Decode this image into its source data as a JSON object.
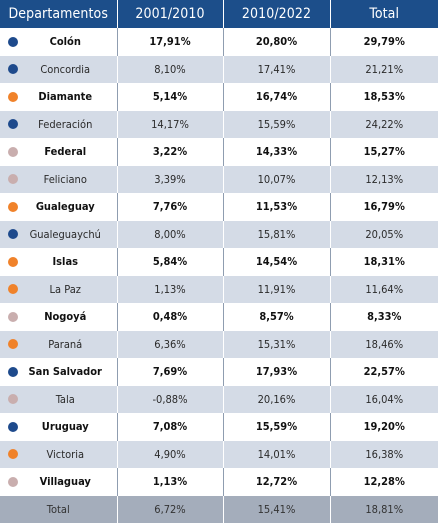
{
  "headers": [
    "Departamentos",
    "2001/2010",
    "2010/2022",
    "Total"
  ],
  "colors": {
    "blue": "#1e4a8c",
    "orange": "#f0822a",
    "pink": "#c9aeae",
    "header_bg": "#1c4e8a"
  },
  "rows": [
    {
      "name": "Colón",
      "dot": "blue",
      "bold": true,
      "v1": "17,91%",
      "v2": "20,80%",
      "v3": "29,79%"
    },
    {
      "name": "Concordia",
      "dot": "blue",
      "bold": false,
      "v1": "8,10%",
      "v2": "17,41%",
      "v3": "21,21%"
    },
    {
      "name": "Diamante",
      "dot": "orange",
      "bold": true,
      "v1": "5,14%",
      "v2": "16,74%",
      "v3": "18,53%"
    },
    {
      "name": "Federación",
      "dot": "blue",
      "bold": false,
      "v1": "14,17%",
      "v2": "15,59%",
      "v3": "24,22%"
    },
    {
      "name": "Federal",
      "dot": "pink",
      "bold": true,
      "v1": "3,22%",
      "v2": "14,33%",
      "v3": "15,27%"
    },
    {
      "name": "Feliciano",
      "dot": "pink",
      "bold": false,
      "v1": "3,39%",
      "v2": "10,07%",
      "v3": "12,13%"
    },
    {
      "name": "Gualeguay",
      "dot": "orange",
      "bold": true,
      "v1": "7,76%",
      "v2": "11,53%",
      "v3": "16,79%"
    },
    {
      "name": "Gualeguaychú",
      "dot": "blue",
      "bold": false,
      "v1": "8,00%",
      "v2": "15,81%",
      "v3": "20,05%"
    },
    {
      "name": "Islas",
      "dot": "orange",
      "bold": true,
      "v1": "5,84%",
      "v2": "14,54%",
      "v3": "18,31%"
    },
    {
      "name": "La Paz",
      "dot": "orange",
      "bold": false,
      "v1": "1,13%",
      "v2": "11,91%",
      "v3": "11,64%"
    },
    {
      "name": "Nogoyá",
      "dot": "pink",
      "bold": true,
      "v1": "0,48%",
      "v2": "8,57%",
      "v3": "8,33%"
    },
    {
      "name": "Paraná",
      "dot": "orange",
      "bold": false,
      "v1": "6,36%",
      "v2": "15,31%",
      "v3": "18,46%"
    },
    {
      "name": "San Salvador",
      "dot": "blue",
      "bold": true,
      "v1": "7,69%",
      "v2": "17,93%",
      "v3": "22,57%"
    },
    {
      "name": "Tala",
      "dot": "pink",
      "bold": false,
      "v1": "-0,88%",
      "v2": "20,16%",
      "v3": "16,04%"
    },
    {
      "name": "Uruguay",
      "dot": "blue",
      "bold": true,
      "v1": "7,08%",
      "v2": "15,59%",
      "v3": "19,20%"
    },
    {
      "name": "Victoria",
      "dot": "orange",
      "bold": false,
      "v1": "4,90%",
      "v2": "14,01%",
      "v3": "16,38%"
    },
    {
      "name": "Villaguay",
      "dot": "pink",
      "bold": true,
      "v1": "1,13%",
      "v2": "12,72%",
      "v3": "12,28%"
    }
  ],
  "total": {
    "name": "Total",
    "v1": "6,72%",
    "v2": "15,41%",
    "v3": "18,81%"
  }
}
